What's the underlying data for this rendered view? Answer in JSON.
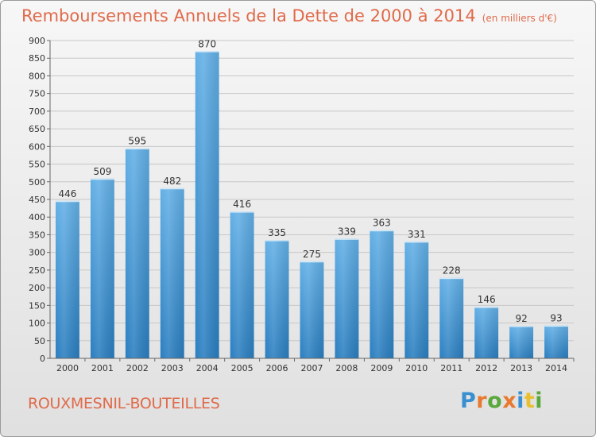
{
  "chart_data": {
    "type": "bar",
    "title": "Remboursements Annuels de la Dette de 2000 à 2014",
    "unit_note": "(en milliers d'€)",
    "categories": [
      "2000",
      "2001",
      "2002",
      "2003",
      "2004",
      "2005",
      "2006",
      "2007",
      "2008",
      "2009",
      "2010",
      "2011",
      "2012",
      "2013",
      "2014"
    ],
    "values": [
      446,
      509,
      595,
      482,
      870,
      416,
      335,
      275,
      339,
      363,
      331,
      228,
      146,
      92,
      93
    ],
    "ylim": [
      0,
      900
    ],
    "yticks": [
      0,
      50,
      100,
      150,
      200,
      250,
      300,
      350,
      400,
      450,
      500,
      550,
      600,
      650,
      700,
      750,
      800,
      850,
      900
    ],
    "grid": true,
    "bar_color": "#4a9edb",
    "bar_color_light": "#63b0e6",
    "bar_color_dark": "#2a7ec0"
  },
  "footer": {
    "commune": "ROUXMESNIL-BOUTEILLES",
    "logo": [
      "P",
      "r",
      "o",
      "x",
      "i",
      "t",
      "i"
    ],
    "logo_colors": [
      "#3a8fd0",
      "#e8792f",
      "#5aa83c",
      "#e8792f",
      "#3a8fd0",
      "#e8c02f",
      "#5aa83c"
    ]
  }
}
